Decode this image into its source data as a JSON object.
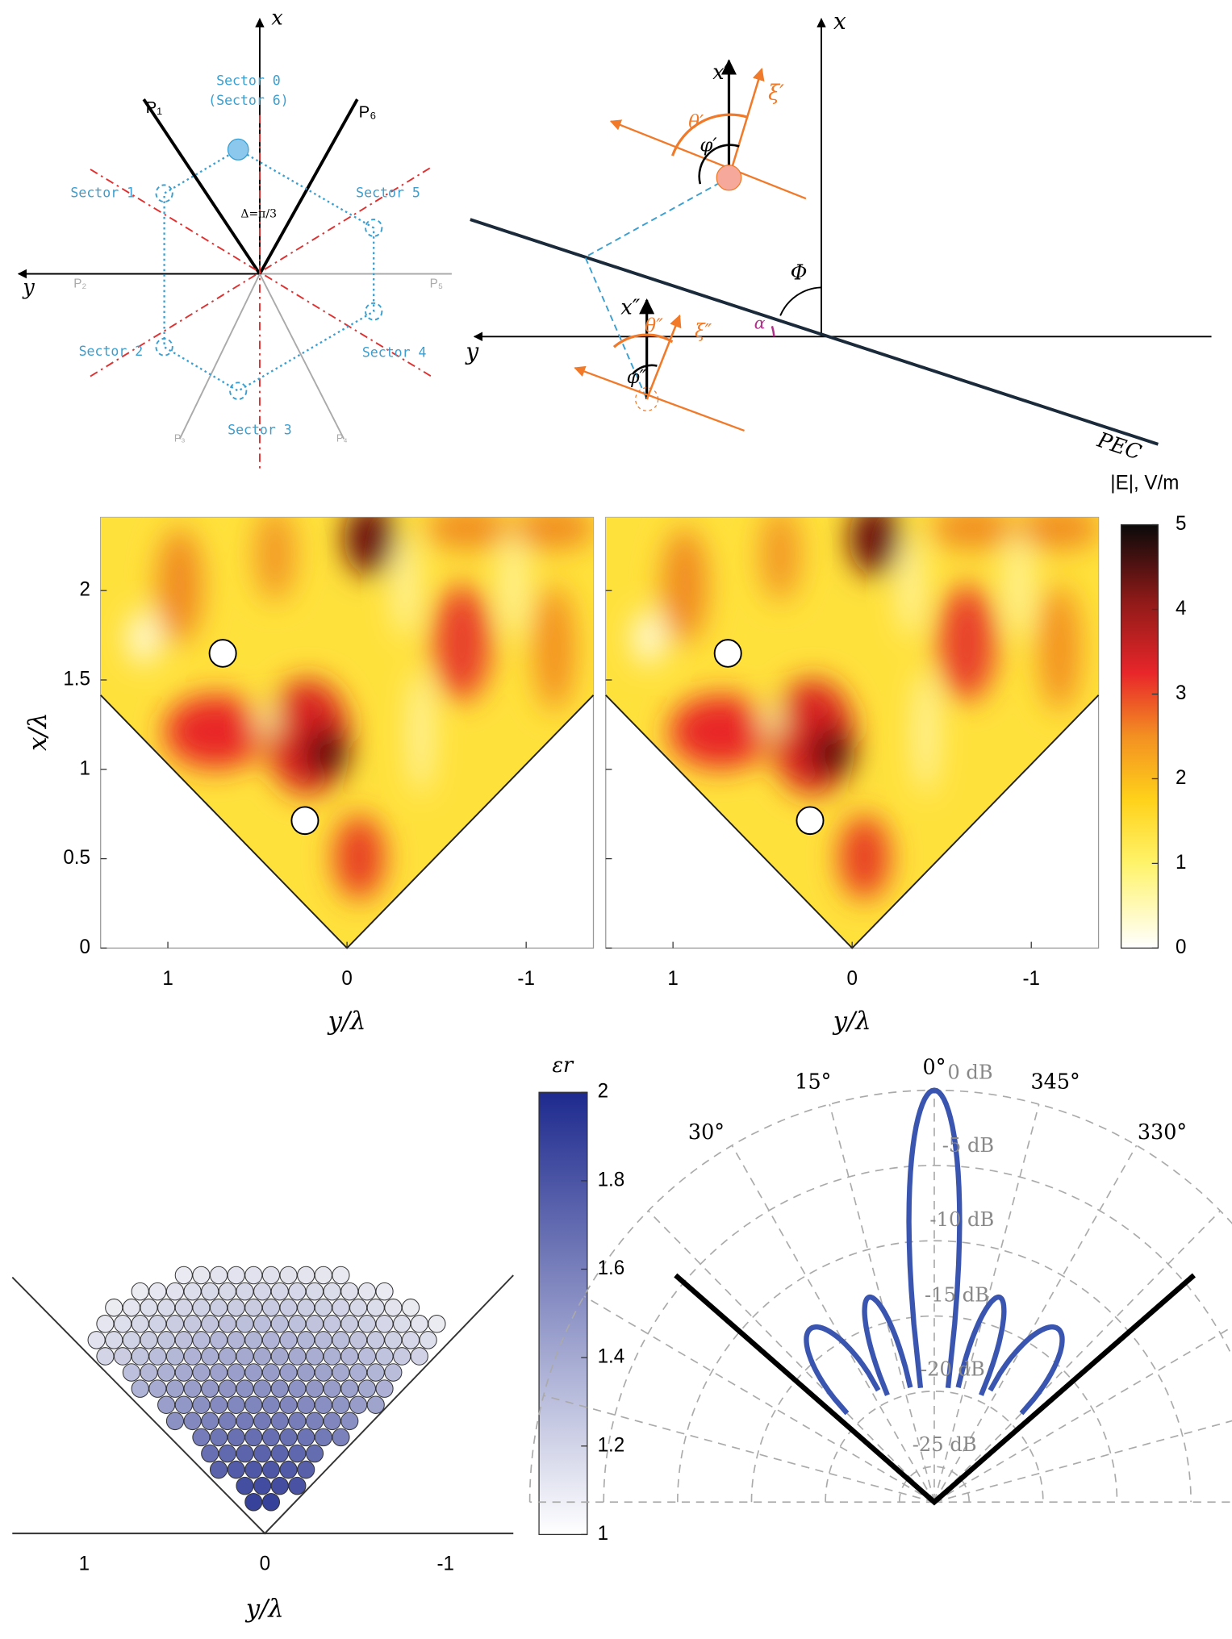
{
  "diagram_sectors": {
    "axis_x": "x",
    "axis_y": "y",
    "sectors": [
      "Sector 0",
      "(Sector 6)",
      "Sector 1",
      "Sector 2",
      "Sector 3",
      "Sector 4",
      "Sector 5"
    ],
    "planes": [
      "P₁",
      "P₆",
      "P₂",
      "P₅",
      "P₃",
      "P₄"
    ],
    "delta": "Δ=π/3"
  },
  "diagram_pec": {
    "axis_x": "x",
    "axis_y": "y",
    "x1": "x′",
    "xi1": "ξ′",
    "theta1": "θ′",
    "phi1": "φ′",
    "x2": "x″",
    "xi2": "ξ″",
    "theta2": "θ″",
    "phi2": "φ″",
    "Phi": "Φ",
    "alpha": "α",
    "pec": "PEC"
  },
  "field_maps": {
    "colorbar_title": "|E|, V/m",
    "colorbar_ticks": [
      0,
      1,
      2,
      3,
      4,
      5
    ],
    "y_label": "x/λ",
    "x_label": "y/λ",
    "yticks": [
      0,
      0.5,
      1,
      1.5,
      2
    ],
    "xticks": [
      1,
      0,
      -1
    ]
  },
  "permittivity": {
    "colorbar_title": "εr",
    "colorbar_ticks": [
      1,
      1.2,
      1.4,
      1.6,
      1.8,
      2
    ],
    "xticks": [
      1,
      0,
      -1
    ],
    "x_label": "y/λ"
  },
  "polar": {
    "angle_labels": [
      "0°",
      "15°",
      "345°",
      "30°",
      "330°"
    ],
    "radial_labels": [
      "0 dB",
      "-5 dB",
      "-10 dB",
      "-15 dB",
      "-20 dB",
      "-25 dB"
    ]
  }
}
